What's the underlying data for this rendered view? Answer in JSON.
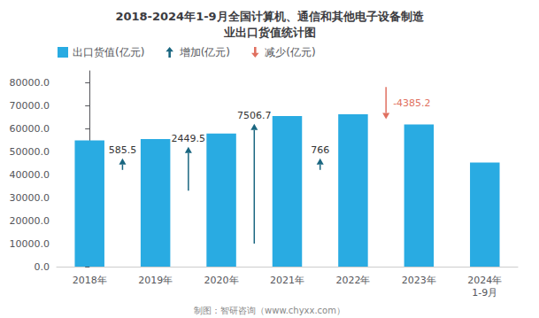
{
  "chart_data": {
    "type": "bar",
    "title": "2018-2024年1-9月全国计算机、通信和其他电子设备制造\n业出口货值统计图",
    "categories": [
      "2018年",
      "2019年",
      "2020年",
      "2021年",
      "2022年",
      "2023年",
      "2024年\n1-9月"
    ],
    "series": [
      {
        "name": "出口货值(亿元)",
        "type": "bar",
        "color": "#29ABE2",
        "values": [
          54800.0,
          55385.5,
          57835.0,
          65341.7,
          66107.7,
          61722.5,
          45200.0
        ]
      }
    ],
    "arrows": [
      {
        "name": "增加(亿元)",
        "color": "#1A6680",
        "marker": "arrow_up",
        "annotations": [
          {
            "text": "585.5",
            "between": [
              "2018年",
              "2019年"
            ],
            "from": 42000,
            "to": 47000
          },
          {
            "text": "2449.5",
            "between": [
              "2019年",
              "2020年"
            ],
            "from": 33000,
            "to": 52000
          },
          {
            "text": "7506.7",
            "between": [
              "2020年",
              "2021年"
            ],
            "from": 10000,
            "to": 62000
          },
          {
            "text": "766",
            "between": [
              "2021年",
              "2022年"
            ],
            "from": 42000,
            "to": 47000
          }
        ]
      },
      {
        "name": "减少(亿元)",
        "color": "#E07060",
        "marker": "arrow_down",
        "annotations": [
          {
            "text": "-4385.2",
            "between": [
              "2022年",
              "2023年"
            ],
            "from": 78000,
            "to": 64000
          }
        ]
      }
    ],
    "ylim": [
      0,
      85000
    ],
    "yticks": [
      {
        "value": 0,
        "label": "0.0"
      },
      {
        "value": 10000,
        "label": "10000.0"
      },
      {
        "value": 20000,
        "label": "20000.0"
      },
      {
        "value": 30000,
        "label": "30000.0"
      },
      {
        "value": 40000,
        "label": "40000.0"
      },
      {
        "value": 50000,
        "label": "50000.0"
      },
      {
        "value": 60000,
        "label": "60000.0"
      },
      {
        "value": 70000,
        "label": "70000.0"
      },
      {
        "value": 80000,
        "label": "80000.0"
      }
    ],
    "grid": false,
    "legend": "upper left",
    "footer": "制图：智研咨询（www.chyxx.com）"
  }
}
